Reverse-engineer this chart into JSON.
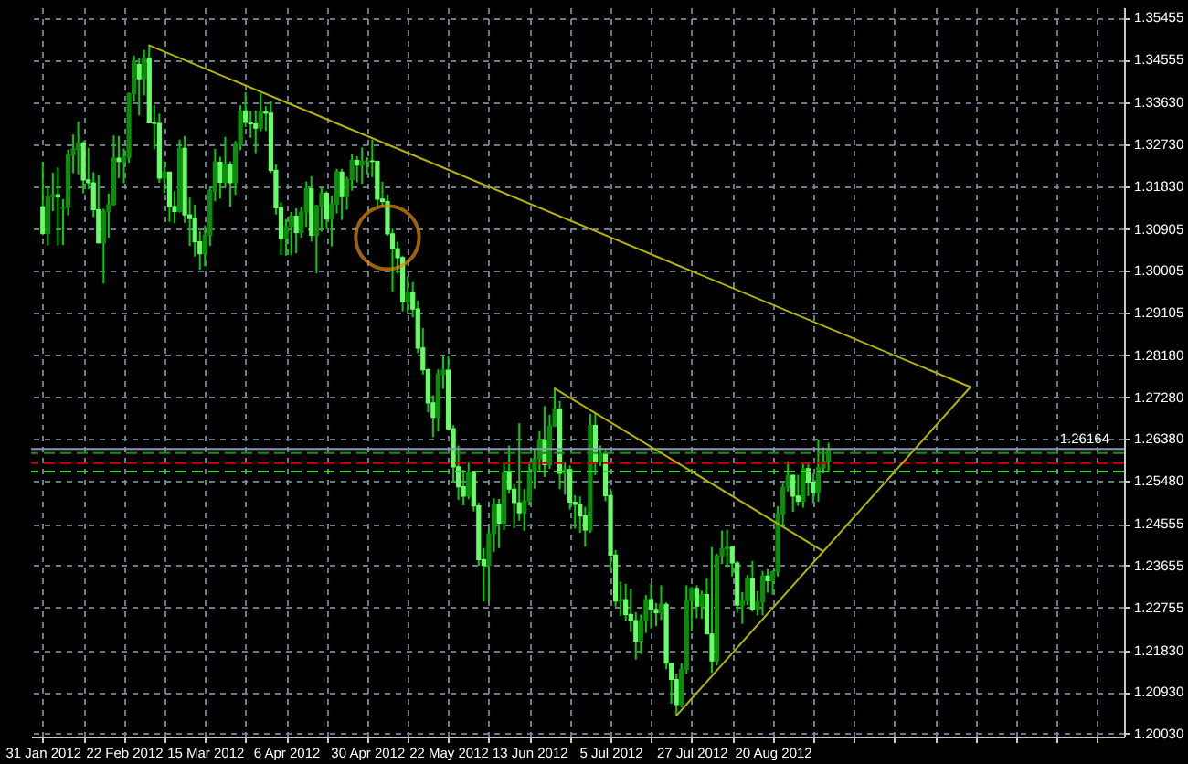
{
  "chart_data": {
    "type": "candlestick",
    "categories": [
      "31 Jan 2012",
      null,
      null,
      null,
      null,
      null,
      null,
      null,
      null,
      null,
      null,
      null,
      null,
      null,
      null,
      null,
      "22 Feb 2012",
      null,
      null,
      null,
      null,
      null,
      null,
      null,
      null,
      null,
      null,
      null,
      null,
      null,
      null,
      null,
      "15 Mar 2012",
      null,
      null,
      null,
      null,
      null,
      null,
      null,
      null,
      null,
      null,
      null,
      null,
      null,
      null,
      null,
      "6 Apr 2012",
      null,
      null,
      null,
      null,
      null,
      null,
      null,
      null,
      null,
      null,
      null,
      null,
      null,
      null,
      null,
      "30 Apr 2012",
      null,
      null,
      null,
      null,
      null,
      null,
      null,
      null,
      null,
      null,
      null,
      null,
      null,
      null,
      null,
      "22 May 2012",
      null,
      null,
      null,
      null,
      null,
      null,
      null,
      null,
      null,
      null,
      null,
      null,
      null,
      null,
      null,
      "13 Jun 2012",
      null,
      null,
      null,
      null,
      null,
      null,
      null,
      null,
      null,
      null,
      null,
      null,
      null,
      null,
      null,
      "5 Jul 2012",
      null,
      null,
      null,
      null,
      null,
      null,
      null,
      null,
      null,
      null,
      null,
      null,
      null,
      null,
      null,
      "27 Jul 2012",
      null,
      null,
      null,
      null,
      null,
      null,
      null,
      null,
      null,
      null,
      null,
      null,
      null,
      null,
      null,
      "20 Aug 2012",
      null,
      null,
      null,
      null,
      null,
      null,
      null,
      null,
      null,
      null,
      null,
      null,
      null,
      null,
      null,
      null,
      null,
      null,
      null,
      null,
      null,
      null,
      null,
      null,
      null,
      null,
      null,
      null,
      null,
      null,
      null,
      null,
      null,
      null,
      null,
      null,
      null,
      null,
      null,
      null,
      null,
      null,
      null,
      null,
      null,
      null,
      null,
      null,
      null,
      null,
      null,
      null,
      null,
      null,
      null,
      null,
      null,
      null,
      null,
      null,
      null,
      null,
      null,
      null,
      null,
      null,
      null
    ],
    "ohlc": [
      [
        1.3138,
        1.3234,
        1.3077,
        1.3081
      ],
      [
        1.3081,
        1.3184,
        1.3055,
        1.316
      ],
      [
        1.316,
        1.3212,
        1.3129,
        1.3164
      ],
      [
        1.3164,
        1.3223,
        1.3055,
        1.3159
      ],
      [
        1.3135,
        1.3155,
        1.3056,
        1.3137
      ],
      [
        1.3137,
        1.3261,
        1.312,
        1.325
      ],
      [
        1.325,
        1.3294,
        1.3211,
        1.3262
      ],
      [
        1.3262,
        1.3322,
        1.3208,
        1.3275
      ],
      [
        1.3275,
        1.328,
        1.3167,
        1.3196
      ],
      [
        1.3196,
        1.3265,
        1.3176,
        1.319
      ],
      [
        1.319,
        1.3213,
        1.3116,
        1.3132
      ],
      [
        1.3132,
        1.3206,
        1.3059,
        1.3061
      ],
      [
        1.3061,
        1.3134,
        1.2973,
        1.3128
      ],
      [
        1.3128,
        1.3167,
        1.3072,
        1.3143
      ],
      [
        1.3143,
        1.3292,
        1.3141,
        1.3243
      ],
      [
        1.3243,
        1.3291,
        1.32,
        1.3236
      ],
      [
        1.3236,
        1.3264,
        1.3189,
        1.3245
      ],
      [
        1.3245,
        1.3384,
        1.3233,
        1.3382
      ],
      [
        1.3382,
        1.3464,
        1.3365,
        1.3452
      ],
      [
        1.3445,
        1.3458,
        1.3335,
        1.3414
      ],
      [
        1.3414,
        1.3476,
        1.3378,
        1.3458
      ],
      [
        1.3458,
        1.3486,
        1.3319,
        1.3319
      ],
      [
        1.3319,
        1.3357,
        1.3262,
        1.3318
      ],
      [
        1.3318,
        1.3339,
        1.319,
        1.32
      ],
      [
        1.32,
        1.3236,
        1.3168,
        1.3213
      ],
      [
        1.3213,
        1.3214,
        1.3106,
        1.3139
      ],
      [
        1.3139,
        1.3172,
        1.3103,
        1.3128
      ],
      [
        1.3128,
        1.3283,
        1.3126,
        1.3264
      ],
      [
        1.3264,
        1.3291,
        1.3104,
        1.3121
      ],
      [
        1.3121,
        1.3158,
        1.3054,
        1.3113
      ],
      [
        1.3113,
        1.3143,
        1.3031,
        1.3063
      ],
      [
        1.3063,
        1.3086,
        1.3003,
        1.3037
      ],
      [
        1.3037,
        1.3098,
        1.301,
        1.3077
      ],
      [
        1.3077,
        1.3182,
        1.3054,
        1.3173
      ],
      [
        1.3173,
        1.3263,
        1.315,
        1.3234
      ],
      [
        1.3234,
        1.3246,
        1.3156,
        1.3191
      ],
      [
        1.3191,
        1.3289,
        1.318,
        1.3229
      ],
      [
        1.3229,
        1.3236,
        1.3138,
        1.319
      ],
      [
        1.319,
        1.328,
        1.3164,
        1.3272
      ],
      [
        1.3272,
        1.3357,
        1.326,
        1.3345
      ],
      [
        1.3345,
        1.3385,
        1.331,
        1.332
      ],
      [
        1.332,
        1.3345,
        1.3287,
        1.3317
      ],
      [
        1.3317,
        1.3346,
        1.3254,
        1.3308
      ],
      [
        1.3308,
        1.3382,
        1.3301,
        1.3343
      ],
      [
        1.3343,
        1.3355,
        1.3302,
        1.334
      ],
      [
        1.334,
        1.3367,
        1.3211,
        1.3217
      ],
      [
        1.3217,
        1.323,
        1.3122,
        1.3136
      ],
      [
        1.3136,
        1.3148,
        1.3034,
        1.307
      ],
      [
        1.307,
        1.3112,
        1.3033,
        1.3096
      ],
      [
        1.3096,
        1.3127,
        1.3034,
        1.3118
      ],
      [
        1.3118,
        1.3135,
        1.3038,
        1.3083
      ],
      [
        1.3083,
        1.3138,
        1.3072,
        1.3127
      ],
      [
        1.3127,
        1.3193,
        1.3095,
        1.3177
      ],
      [
        1.3177,
        1.3204,
        1.3063,
        1.3077
      ],
      [
        1.3077,
        1.3143,
        1.2995,
        1.314
      ],
      [
        1.314,
        1.3182,
        1.3085,
        1.3167
      ],
      [
        1.3167,
        1.3172,
        1.309,
        1.3112
      ],
      [
        1.3112,
        1.3162,
        1.3053,
        1.3144
      ],
      [
        1.3144,
        1.322,
        1.3124,
        1.3213
      ],
      [
        1.3213,
        1.322,
        1.311,
        1.316
      ],
      [
        1.316,
        1.3203,
        1.3132,
        1.3197
      ],
      [
        1.3197,
        1.3252,
        1.3173,
        1.3238
      ],
      [
        1.3238,
        1.3247,
        1.3191,
        1.3228
      ],
      [
        1.3228,
        1.3266,
        1.3188,
        1.3236
      ],
      [
        1.3236,
        1.3245,
        1.3208,
        1.3237
      ],
      [
        1.3237,
        1.3283,
        1.3202,
        1.3236
      ],
      [
        1.3236,
        1.3238,
        1.314,
        1.3155
      ],
      [
        1.3155,
        1.3192,
        1.314,
        1.315
      ],
      [
        1.315,
        1.3165,
        1.3076,
        1.308
      ],
      [
        1.308,
        1.3091,
        1.2955,
        1.3048
      ],
      [
        1.3048,
        1.3063,
        1.2994,
        1.3029
      ],
      [
        1.3029,
        1.3033,
        1.2913,
        1.2934
      ],
      [
        1.2934,
        1.2988,
        1.2911,
        1.2953
      ],
      [
        1.2953,
        1.2976,
        1.29,
        1.2918
      ],
      [
        1.2918,
        1.2936,
        1.2823,
        1.2834
      ],
      [
        1.2834,
        1.2877,
        1.2777,
        1.2787
      ],
      [
        1.2787,
        1.279,
        1.2696,
        1.2716
      ],
      [
        1.2716,
        1.2732,
        1.2642,
        1.2685
      ],
      [
        1.2685,
        1.2788,
        1.2654,
        1.2778
      ],
      [
        1.2778,
        1.2818,
        1.2746,
        1.2786
      ],
      [
        1.2786,
        1.2816,
        1.2656,
        1.266
      ],
      [
        1.266,
        1.2668,
        1.2545,
        1.2578
      ],
      [
        1.2578,
        1.2624,
        1.2507,
        1.2535
      ],
      [
        1.2535,
        1.2572,
        1.2495,
        1.2515
      ],
      [
        1.2515,
        1.2587,
        1.2508,
        1.2565
      ],
      [
        1.2565,
        1.257,
        1.2482,
        1.2494
      ],
      [
        1.2494,
        1.2501,
        1.2365,
        1.2378
      ],
      [
        1.2378,
        1.2403,
        1.2288,
        1.2366
      ],
      [
        1.2366,
        1.2444,
        1.2287,
        1.2434
      ],
      [
        1.2434,
        1.251,
        1.2395,
        1.2497
      ],
      [
        1.2497,
        1.2509,
        1.2403,
        1.2457
      ],
      [
        1.2457,
        1.2588,
        1.2442,
        1.2565
      ],
      [
        1.2565,
        1.2624,
        1.252,
        1.253
      ],
      [
        1.253,
        1.2541,
        1.2446,
        1.2501
      ],
      [
        1.2501,
        1.2672,
        1.2462,
        1.2479
      ],
      [
        1.2479,
        1.253,
        1.244,
        1.2505
      ],
      [
        1.2505,
        1.259,
        1.2495,
        1.2569
      ],
      [
        1.2569,
        1.2615,
        1.2531,
        1.2595
      ],
      [
        1.2595,
        1.2655,
        1.257,
        1.2636
      ],
      [
        1.2636,
        1.2709,
        1.2556,
        1.2583
      ],
      [
        1.2583,
        1.269,
        1.2574,
        1.2666
      ],
      [
        1.2666,
        1.2747,
        1.2665,
        1.2702
      ],
      [
        1.2702,
        1.272,
        1.253,
        1.2564
      ],
      [
        1.2564,
        1.2588,
        1.2518,
        1.2572
      ],
      [
        1.2572,
        1.2581,
        1.2486,
        1.2502
      ],
      [
        1.2502,
        1.2517,
        1.2445,
        1.2497
      ],
      [
        1.2497,
        1.2514,
        1.2436,
        1.2472
      ],
      [
        1.2472,
        1.2492,
        1.2406,
        1.2442
      ],
      [
        1.2442,
        1.2692,
        1.2436,
        1.2667
      ],
      [
        1.2667,
        1.2694,
        1.256,
        1.2589
      ],
      [
        1.2589,
        1.2624,
        1.258,
        1.2607
      ],
      [
        1.2607,
        1.2614,
        1.2504,
        1.2516
      ],
      [
        1.2516,
        1.2531,
        1.2355,
        1.2388
      ],
      [
        1.2388,
        1.2399,
        1.2277,
        1.2289
      ],
      [
        1.2289,
        1.2331,
        1.2257,
        1.2292
      ],
      [
        1.2292,
        1.2326,
        1.2246,
        1.226
      ],
      [
        1.226,
        1.2316,
        1.2222,
        1.2247
      ],
      [
        1.2247,
        1.2265,
        1.2163,
        1.2203
      ],
      [
        1.2203,
        1.226,
        1.2175,
        1.2246
      ],
      [
        1.2246,
        1.2302,
        1.222,
        1.2292
      ],
      [
        1.2292,
        1.2326,
        1.223,
        1.2271
      ],
      [
        1.2271,
        1.2285,
        1.2235,
        1.2264
      ],
      [
        1.2264,
        1.2323,
        1.2248,
        1.2282
      ],
      [
        1.2282,
        1.2286,
        1.2142,
        1.2155
      ],
      [
        1.2155,
        1.2156,
        1.2068,
        1.212
      ],
      [
        1.212,
        1.2133,
        1.2042,
        1.2066
      ],
      [
        1.2066,
        1.2155,
        1.206,
        1.2142
      ],
      [
        1.2142,
        1.2323,
        1.2132,
        1.229
      ],
      [
        1.229,
        1.2319,
        1.2224,
        1.2316
      ],
      [
        1.2316,
        1.2323,
        1.2252,
        1.2278
      ],
      [
        1.2278,
        1.2311,
        1.2251,
        1.2303
      ],
      [
        1.2303,
        1.2338,
        1.2218,
        1.2218
      ],
      [
        1.2218,
        1.2405,
        1.2134,
        1.216
      ],
      [
        1.216,
        1.2391,
        1.215,
        1.2386
      ],
      [
        1.2386,
        1.2441,
        1.2369,
        1.2402
      ],
      [
        1.2402,
        1.2443,
        1.2362,
        1.2405
      ],
      [
        1.2405,
        1.2408,
        1.2342,
        1.2371
      ],
      [
        1.2371,
        1.2375,
        1.2264,
        1.228
      ],
      [
        1.228,
        1.2308,
        1.224,
        1.229
      ],
      [
        1.229,
        1.2345,
        1.228,
        1.2338
      ],
      [
        1.2338,
        1.2375,
        1.2266,
        1.2272
      ],
      [
        1.2272,
        1.231,
        1.2258,
        1.2287
      ],
      [
        1.2287,
        1.2354,
        1.2258,
        1.2343
      ],
      [
        1.2343,
        1.2358,
        1.2307,
        1.2333
      ],
      [
        1.2333,
        1.2355,
        1.2303,
        1.2352
      ],
      [
        1.2352,
        1.2493,
        1.2342,
        1.2477
      ],
      [
        1.2477,
        1.2542,
        1.2448,
        1.2534
      ],
      [
        1.2534,
        1.259,
        1.2525,
        1.256
      ],
      [
        1.256,
        1.2561,
        1.2481,
        1.2515
      ],
      [
        1.2515,
        1.2561,
        1.2494,
        1.2504
      ],
      [
        1.2504,
        1.2584,
        1.249,
        1.2574
      ],
      [
        1.2574,
        1.2584,
        1.2515,
        1.2545
      ],
      [
        1.2545,
        1.2563,
        1.25,
        1.2523
      ],
      [
        1.2523,
        1.2637,
        1.2503,
        1.2576
      ],
      [
        1.2576,
        1.262,
        1.2564,
        1.259
      ],
      [
        1.259,
        1.263,
        1.2566,
        1.2616
      ],
      null,
      null,
      null,
      null,
      null,
      null,
      null,
      null,
      null,
      null,
      null,
      null,
      null,
      null,
      null,
      null,
      null,
      null,
      null,
      null,
      null,
      null,
      null,
      null,
      null,
      null,
      null,
      null,
      null,
      null,
      null,
      null,
      null,
      null,
      null,
      null,
      null,
      null,
      null,
      null,
      null,
      null,
      null,
      null,
      null,
      null,
      null,
      null,
      null,
      null,
      null,
      null,
      null,
      null,
      null,
      null
    ],
    "color": "#00d000",
    "colors": [
      "#66ff66",
      "#0b8f0b",
      "#0b8f0b",
      "#66ff66",
      "#0b8f0b",
      "#0b8f0b",
      "#0b8f0b",
      "#0b8f0b",
      "#66ff66",
      "#66ff66",
      "#66ff66",
      "#66ff66",
      "#0b8f0b",
      "#0b8f0b",
      "#0b8f0b",
      "#66ff66",
      "#0b8f0b",
      "#0b8f0b",
      "#0b8f0b",
      "#66ff66",
      "#0b8f0b",
      "#66ff66",
      "#66ff66",
      "#66ff66",
      "#0b8f0b",
      "#66ff66",
      "#66ff66",
      "#0b8f0b",
      "#66ff66",
      "#66ff66",
      "#66ff66",
      "#66ff66",
      "#0b8f0b",
      "#0b8f0b",
      "#0b8f0b",
      "#66ff66",
      "#0b8f0b",
      "#66ff66",
      "#0b8f0b",
      "#0b8f0b",
      "#66ff66",
      "#66ff66",
      "#66ff66",
      "#0b8f0b",
      "#66ff66",
      "#66ff66",
      "#66ff66",
      "#66ff66",
      "#0b8f0b",
      "#0b8f0b",
      "#66ff66",
      "#0b8f0b",
      "#0b8f0b",
      "#66ff66",
      "#0b8f0b",
      "#0b8f0b",
      "#66ff66",
      "#0b8f0b",
      "#0b8f0b",
      "#66ff66",
      "#0b8f0b",
      "#0b8f0b",
      "#66ff66",
      "#0b8f0b",
      "#0b8f0b",
      "#66ff66",
      "#66ff66",
      "#66ff66",
      "#66ff66",
      "#66ff66",
      "#66ff66",
      "#66ff66",
      "#0b8f0b",
      "#66ff66",
      "#66ff66",
      "#66ff66",
      "#66ff66",
      "#66ff66",
      "#0b8f0b",
      "#0b8f0b",
      "#66ff66",
      "#66ff66",
      "#66ff66",
      "#66ff66",
      "#0b8f0b",
      "#66ff66",
      "#66ff66",
      "#66ff66",
      "#0b8f0b",
      "#0b8f0b",
      "#66ff66",
      "#0b8f0b",
      "#66ff66",
      "#66ff66",
      "#66ff66",
      "#0b8f0b",
      "#0b8f0b",
      "#0b8f0b",
      "#0b8f0b",
      "#66ff66",
      "#0b8f0b",
      "#0b8f0b",
      "#66ff66",
      "#0b8f0b",
      "#66ff66",
      "#66ff66",
      "#66ff66",
      "#66ff66",
      "#0b8f0b",
      "#66ff66",
      "#0b8f0b",
      "#66ff66",
      "#66ff66",
      "#66ff66",
      "#0b8f0b",
      "#66ff66",
      "#66ff66",
      "#66ff66",
      "#0b8f0b",
      "#0b8f0b",
      "#66ff66",
      "#66ff66",
      "#0b8f0b",
      "#66ff66",
      "#66ff66",
      "#66ff66",
      "#0b8f0b",
      "#0b8f0b",
      "#0b8f0b",
      "#66ff66",
      "#0b8f0b",
      "#66ff66",
      "#66ff66",
      "#0b8f0b",
      "#0b8f0b",
      "#0b8f0b",
      "#66ff66",
      "#66ff66",
      "#0b8f0b",
      "#0b8f0b",
      "#66ff66",
      "#0b8f0b",
      "#0b8f0b",
      "#66ff66",
      "#0b8f0b",
      "#0b8f0b",
      "#0b8f0b",
      "#0b8f0b",
      "#66ff66",
      "#66ff66",
      "#0b8f0b",
      "#66ff66",
      "#66ff66",
      "#0b8f0b",
      "#0b8f0b",
      "#0b8f0b",
      null,
      null,
      null,
      null,
      null,
      null,
      null,
      null,
      null,
      null,
      null,
      null,
      null,
      null,
      null,
      null,
      null,
      null,
      null,
      null,
      null,
      null,
      null,
      null,
      null,
      null,
      null,
      null,
      null,
      null,
      null,
      null,
      null,
      null,
      null,
      null,
      null,
      null,
      null,
      null,
      null,
      null,
      null,
      null,
      null,
      null,
      null,
      null,
      null,
      null,
      null,
      null,
      null,
      null,
      null,
      null
    ],
    "ylim": [
      1.1997,
      1.3568
    ],
    "yticks": [
      {
        "value": 1.2003,
        "label": "1.20030"
      },
      {
        "value": 1.2093,
        "label": "1.20930"
      },
      {
        "value": 1.2183,
        "label": "1.21830"
      },
      1.22755,
      1.23655,
      1.24555,
      {
        "value": 1.2548,
        "label": "1.25480"
      },
      {
        "value": 1.2638,
        "label": "1.26380"
      },
      {
        "value": 1.2728,
        "label": "1.27280"
      },
      {
        "value": 1.2818,
        "label": "1.28180"
      },
      1.29105,
      1.30005,
      1.30905,
      {
        "value": 1.3183,
        "label": "1.31830"
      },
      {
        "value": 1.3273,
        "label": "1.32730"
      },
      {
        "value": 1.3363,
        "label": "1.33630"
      },
      1.34555,
      1.35455
    ],
    "grid": true,
    "ref_lines": [
      {
        "axis": "y",
        "value": 1.26164,
        "label": "1.26164",
        "color": "#8a9aac"
      },
      {
        "axis": "y",
        "value": 1.2608,
        "color": "#1e8c1e",
        "line_style": "dashed"
      },
      {
        "axis": "y",
        "value": 1.2586,
        "color": "#d20000",
        "line_style": "dashed"
      },
      {
        "axis": "y",
        "value": 1.2568,
        "color": "#32dc32",
        "line_style": "dashed"
      }
    ],
    "series": [
      {
        "type": "line",
        "color": "#b4b400",
        "values": [
          null,
          null,
          null,
          null,
          null,
          null,
          null,
          null,
          null,
          null,
          null,
          null,
          null,
          null,
          null,
          null,
          null,
          null,
          null,
          null,
          null,
          1.3486,
          null,
          null,
          null,
          null,
          null,
          null,
          null,
          null,
          null,
          null,
          null,
          null,
          null,
          null,
          null,
          null,
          null,
          null,
          null,
          null,
          null,
          null,
          null,
          null,
          null,
          null,
          null,
          null,
          null,
          null,
          null,
          null,
          null,
          null,
          null,
          null,
          null,
          null,
          null,
          null,
          null,
          null,
          null,
          null,
          null,
          null,
          null,
          null,
          null,
          null,
          null,
          null,
          null,
          null,
          null,
          null,
          null,
          null,
          null,
          null,
          null,
          null,
          null,
          null,
          null,
          null,
          null,
          null,
          null,
          null,
          null,
          null,
          null,
          null,
          null,
          null,
          null,
          null,
          null,
          null,
          null,
          null,
          null,
          null,
          null,
          null,
          null,
          null,
          null,
          null,
          null,
          null,
          null,
          null,
          null,
          null,
          null,
          null,
          null,
          null,
          null,
          null,
          null,
          null,
          null,
          null,
          null,
          null,
          null,
          null,
          null,
          null,
          null,
          null,
          null,
          null,
          null,
          null,
          null,
          null,
          null,
          null,
          null,
          null,
          null,
          null,
          null,
          null,
          null,
          null,
          null,
          null,
          null,
          null,
          null,
          null,
          null,
          null,
          null,
          null,
          null,
          null,
          null,
          null,
          null,
          null,
          null,
          null,
          null,
          null,
          null,
          null,
          null,
          null,
          null,
          null,
          null,
          null,
          null,
          null,
          null,
          1.275,
          null,
          null,
          null,
          null,
          null,
          null,
          null,
          null,
          null,
          null,
          null,
          null,
          null,
          null,
          null,
          null,
          null,
          null,
          null,
          null,
          null,
          null,
          null,
          null,
          null,
          null,
          null,
          null
        ]
      },
      {
        "type": "line",
        "color": "#b4b400",
        "values": [
          null,
          null,
          null,
          null,
          null,
          null,
          null,
          null,
          null,
          null,
          null,
          null,
          null,
          null,
          null,
          null,
          null,
          null,
          null,
          null,
          null,
          null,
          null,
          null,
          null,
          null,
          null,
          null,
          null,
          null,
          null,
          null,
          null,
          null,
          null,
          null,
          null,
          null,
          null,
          null,
          null,
          null,
          null,
          null,
          null,
          null,
          null,
          null,
          null,
          null,
          null,
          null,
          null,
          null,
          null,
          null,
          null,
          null,
          null,
          null,
          null,
          null,
          null,
          null,
          null,
          null,
          null,
          null,
          null,
          null,
          null,
          null,
          null,
          null,
          null,
          null,
          null,
          null,
          null,
          null,
          null,
          null,
          null,
          null,
          null,
          null,
          null,
          null,
          null,
          null,
          null,
          null,
          null,
          null,
          null,
          null,
          null,
          null,
          null,
          null,
          null,
          null,
          null,
          null,
          null,
          null,
          null,
          null,
          null,
          null,
          null,
          null,
          null,
          null,
          null,
          null,
          null,
          null,
          null,
          null,
          null,
          null,
          null,
          null,
          null,
          1.2042,
          null,
          null,
          null,
          null,
          null,
          null,
          null,
          null,
          null,
          null,
          null,
          null,
          null,
          null,
          null,
          null,
          null,
          null,
          null,
          null,
          null,
          null,
          null,
          null,
          null,
          null,
          null,
          null,
          null,
          null,
          null,
          null,
          null,
          null,
          null,
          null,
          null,
          null,
          null,
          null,
          null,
          null,
          null,
          null,
          null,
          null,
          null,
          null,
          null,
          null,
          null,
          null,
          null,
          null,
          null,
          null,
          null,
          1.275,
          null,
          null,
          null,
          null,
          null,
          null,
          null,
          null,
          null,
          null,
          null,
          null,
          null,
          null,
          null,
          null,
          null,
          null,
          null,
          null,
          null,
          null,
          null,
          null,
          null,
          null,
          null,
          null
        ]
      },
      {
        "type": "line",
        "color": "#b4b400",
        "values": [
          null,
          null,
          null,
          null,
          null,
          null,
          null,
          null,
          null,
          null,
          null,
          null,
          null,
          null,
          null,
          null,
          null,
          null,
          null,
          null,
          null,
          null,
          null,
          null,
          null,
          null,
          null,
          null,
          null,
          null,
          null,
          null,
          null,
          null,
          null,
          null,
          null,
          null,
          null,
          null,
          null,
          null,
          null,
          null,
          null,
          null,
          null,
          null,
          null,
          null,
          null,
          null,
          null,
          null,
          null,
          null,
          null,
          null,
          null,
          null,
          null,
          null,
          null,
          null,
          null,
          null,
          null,
          null,
          null,
          null,
          null,
          null,
          null,
          null,
          null,
          null,
          null,
          null,
          null,
          null,
          null,
          null,
          null,
          null,
          null,
          null,
          null,
          null,
          null,
          null,
          null,
          null,
          null,
          null,
          null,
          null,
          null,
          null,
          null,
          null,
          null,
          1.2747,
          null,
          null,
          null,
          null,
          null,
          null,
          null,
          null,
          null,
          null,
          null,
          null,
          null,
          null,
          null,
          null,
          null,
          null,
          null,
          null,
          null,
          null,
          null,
          null,
          null,
          null,
          null,
          null,
          null,
          null,
          null,
          null,
          null,
          null,
          null,
          null,
          null,
          null,
          null,
          null,
          null,
          null,
          null,
          null,
          null,
          null,
          null,
          null,
          null,
          null,
          null,
          null,
          1.2396,
          null,
          null,
          null,
          null,
          null,
          null,
          null,
          null,
          null,
          null,
          null,
          null,
          null,
          null,
          null,
          null,
          null,
          null,
          null,
          null,
          null,
          null,
          null,
          null,
          null,
          null,
          null,
          null,
          null,
          null,
          null,
          null,
          null,
          null,
          null,
          null,
          null,
          null,
          null,
          null,
          null,
          null,
          null,
          null,
          null,
          null,
          null,
          null,
          null,
          null,
          null,
          null,
          null,
          null,
          null,
          null,
          null
        ]
      },
      {
        "type": "scatter",
        "color": "#e08c14",
        "marker": "circle",
        "values": [
          null,
          null,
          null,
          null,
          null,
          null,
          null,
          null,
          null,
          null,
          null,
          null,
          null,
          null,
          null,
          null,
          null,
          null,
          null,
          null,
          null,
          null,
          null,
          null,
          null,
          null,
          null,
          null,
          null,
          null,
          null,
          null,
          null,
          null,
          null,
          null,
          null,
          null,
          null,
          null,
          null,
          null,
          null,
          null,
          null,
          null,
          null,
          null,
          null,
          null,
          null,
          null,
          null,
          null,
          null,
          null,
          null,
          null,
          null,
          null,
          null,
          null,
          null,
          null,
          null,
          null,
          null,
          null,
          1.3072,
          null,
          null,
          null,
          null,
          null,
          null,
          null,
          null,
          null,
          null,
          null,
          null,
          null,
          null,
          null,
          null,
          null,
          null,
          null,
          null,
          null,
          null,
          null,
          null,
          null,
          null,
          null,
          null,
          null,
          null,
          null,
          null,
          null,
          null,
          null,
          null,
          null,
          null,
          null,
          null,
          null,
          null,
          null,
          null,
          null,
          null,
          null,
          null,
          null,
          null,
          null,
          null,
          null,
          null,
          null,
          null,
          null,
          null,
          null,
          null,
          null,
          null,
          null,
          null,
          null,
          null,
          null,
          null,
          null,
          null,
          null,
          null,
          null,
          null,
          null,
          null,
          null,
          null,
          null,
          null,
          null,
          null,
          null,
          null,
          null,
          null,
          null,
          null,
          null,
          null,
          null,
          null,
          null,
          null,
          null,
          null,
          null,
          null,
          null,
          null,
          null,
          null,
          null,
          null,
          null,
          null,
          null,
          null,
          null,
          null,
          null,
          null,
          null,
          null,
          null,
          null,
          null,
          null,
          null,
          null,
          null,
          null,
          null,
          null,
          null,
          null,
          null,
          null,
          null,
          null,
          null,
          null,
          null,
          null,
          null,
          null,
          null,
          null,
          null,
          null,
          null,
          null,
          null
        ]
      }
    ]
  }
}
